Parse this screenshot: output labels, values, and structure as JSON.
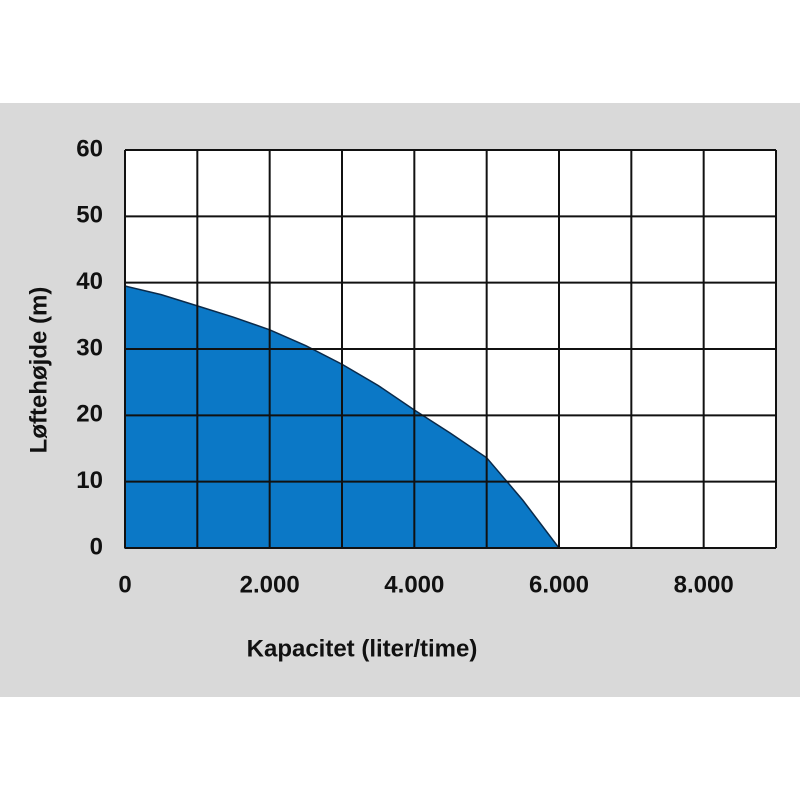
{
  "chart_data": {
    "type": "area",
    "x": [
      0,
      500,
      1000,
      1500,
      2000,
      2500,
      3000,
      3500,
      4000,
      4500,
      5000,
      5500,
      6000
    ],
    "values": [
      39.5,
      38.2,
      36.5,
      34.8,
      32.9,
      30.5,
      27.7,
      24.5,
      20.8,
      17.3,
      13.6,
      7.2,
      0
    ],
    "color": "#0b78c6",
    "xlabel": "Kapacitet (liter/time)",
    "ylabel": "Løftehøjde (m)",
    "xlim": [
      0,
      9000
    ],
    "ylim": [
      0,
      60
    ],
    "xticks": [
      0,
      {
        "value": 2000,
        "label": "2.000"
      },
      {
        "value": 4000,
        "label": "4.000"
      },
      {
        "value": 6000,
        "label": "6.000"
      },
      {
        "value": 8000,
        "label": "8.000"
      }
    ],
    "xminor": [
      1000,
      3000,
      5000,
      7000,
      9000
    ],
    "yticks": [
      0,
      10,
      20,
      30,
      40,
      50,
      60
    ],
    "grid": true
  }
}
